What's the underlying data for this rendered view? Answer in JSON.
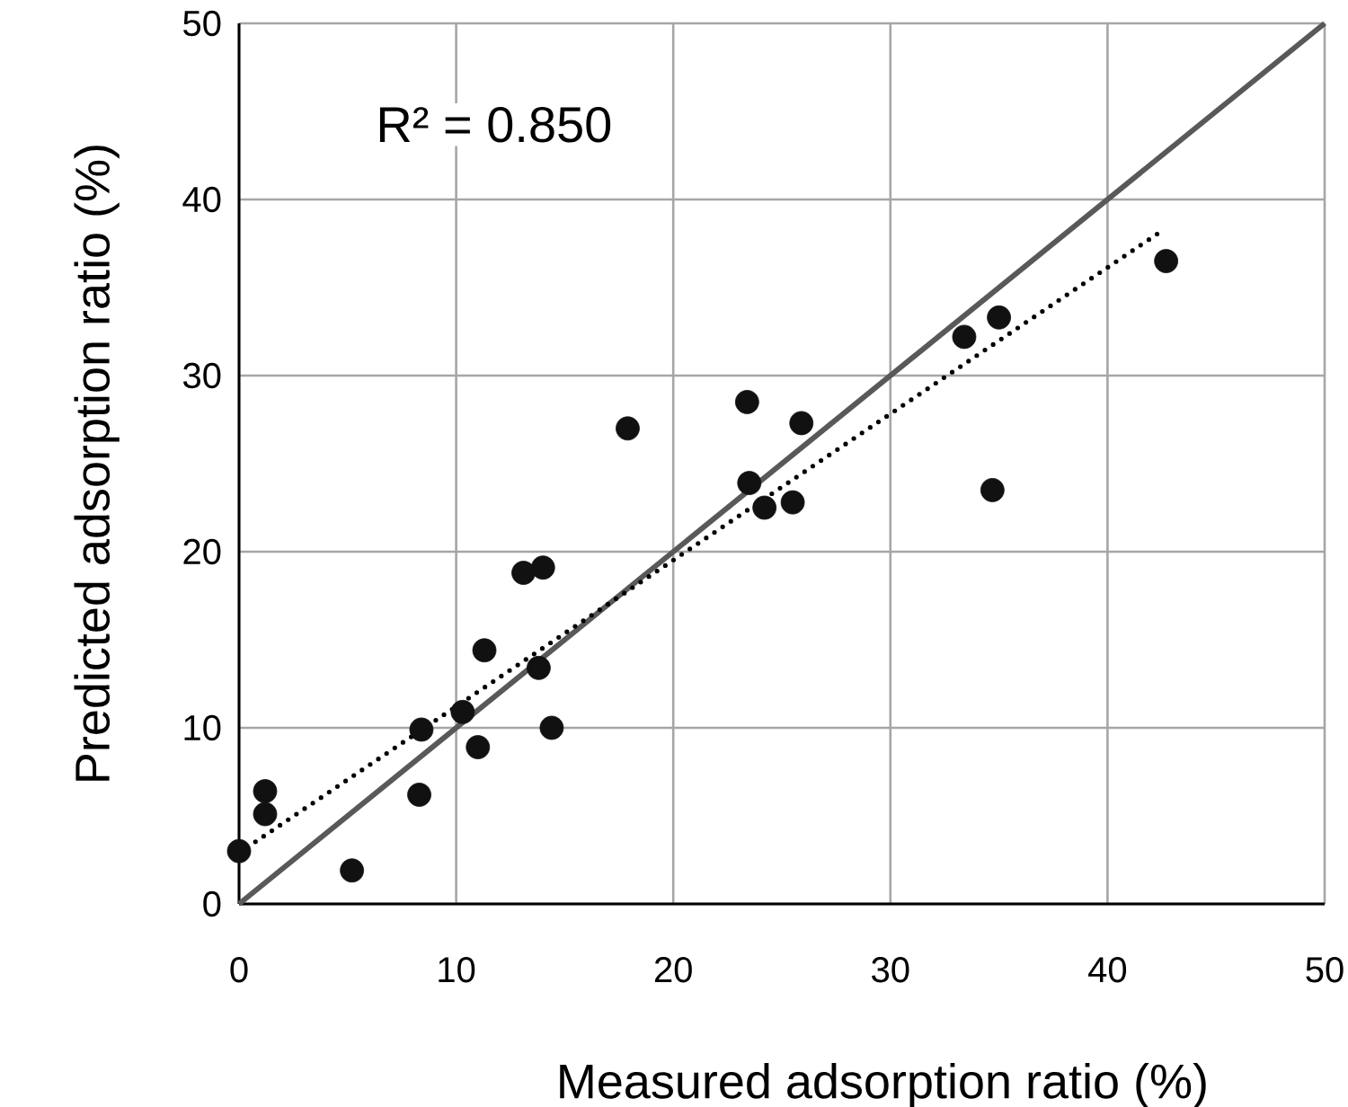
{
  "chart_data": {
    "type": "scatter",
    "xlabel": "Measured adsorption ratio (%)",
    "ylabel": "Predicted adsorption ratio (%)",
    "annotations": [
      "R² = 0.850"
    ],
    "xlim": [
      0,
      50
    ],
    "ylim": [
      0,
      50
    ],
    "xticks": [
      0,
      10,
      20,
      30,
      40,
      50
    ],
    "yticks": [
      0,
      10,
      20,
      30,
      40,
      50
    ],
    "grid": true,
    "series": [
      {
        "color": "#111111",
        "marker": "circle",
        "x": [
          0.0,
          1.2,
          1.2,
          5.2,
          8.3,
          8.4,
          10.3,
          11.0,
          11.3,
          13.8,
          14.4,
          13.1,
          14.0,
          17.9,
          23.4,
          25.9,
          23.5,
          24.2,
          25.5,
          34.7,
          33.4,
          35.0,
          42.7
        ],
        "values": [
          3.0,
          6.4,
          5.1,
          1.9,
          6.2,
          9.9,
          10.9,
          8.9,
          14.4,
          13.4,
          10.0,
          18.8,
          19.1,
          27.0,
          28.5,
          27.3,
          23.9,
          22.5,
          22.8,
          23.5,
          32.2,
          33.3,
          36.5
        ]
      },
      {
        "type": "line",
        "color": "#595959",
        "marker": "none",
        "line_style": "solid",
        "x": [
          0,
          50
        ],
        "values": [
          0,
          50
        ]
      },
      {
        "type": "line",
        "color": "#000000",
        "marker": "none",
        "line_style": "dotted",
        "x": [
          0,
          42.6
        ],
        "values": [
          2.9,
          38.3
        ]
      }
    ]
  }
}
